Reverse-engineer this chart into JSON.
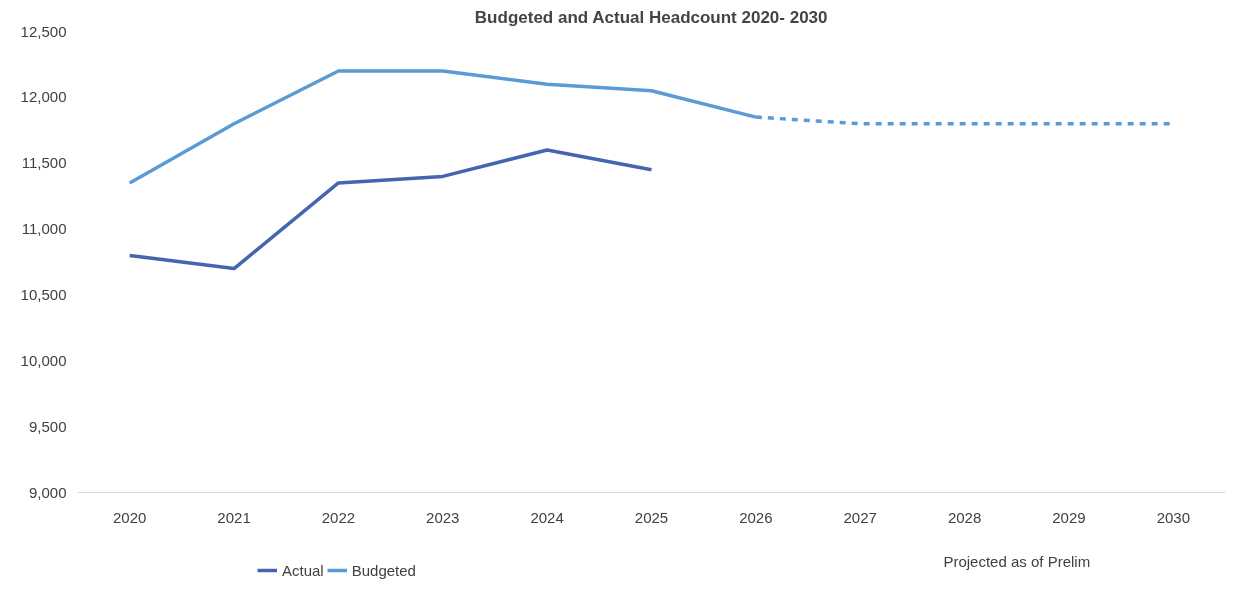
{
  "chart_data": {
    "type": "line",
    "title": "Budgeted and Actual Headcount 2020- 2030",
    "categories": [
      "2020",
      "2021",
      "2022",
      "2023",
      "2024",
      "2025",
      "2026",
      "2027",
      "2028",
      "2029",
      "2030"
    ],
    "series": [
      {
        "name": "Actual",
        "color": "#4466b0",
        "values": [
          10800,
          10700,
          11350,
          11400,
          11600,
          11450,
          null,
          null,
          null,
          null,
          null
        ]
      },
      {
        "name": "Budgeted",
        "color": "#5b9bd5",
        "values": [
          11350,
          11800,
          12200,
          12200,
          12100,
          12050,
          11850,
          null,
          null,
          null,
          null
        ]
      },
      {
        "color": "#5b9bd5",
        "line_style": "dashed",
        "values": [
          null,
          null,
          null,
          null,
          null,
          null,
          11850,
          11800,
          11800,
          11800,
          11800
        ]
      }
    ],
    "ylim": [
      9000,
      12500
    ],
    "yticks": [
      {
        "value": 9000,
        "label": "9,000"
      },
      {
        "value": 9500,
        "label": "9,500"
      },
      {
        "value": 10000,
        "label": "10,000"
      },
      {
        "value": 10500,
        "label": "10,500"
      },
      {
        "value": 11000,
        "label": "11,000"
      },
      {
        "value": 11500,
        "label": "11,500"
      },
      {
        "value": 12000,
        "label": "12,000"
      },
      {
        "value": 12500,
        "label": "12,500"
      }
    ],
    "grid": false,
    "legend": "bottom",
    "line_style": "solid",
    "annotations": [
      "Projected as of Prelim"
    ]
  }
}
